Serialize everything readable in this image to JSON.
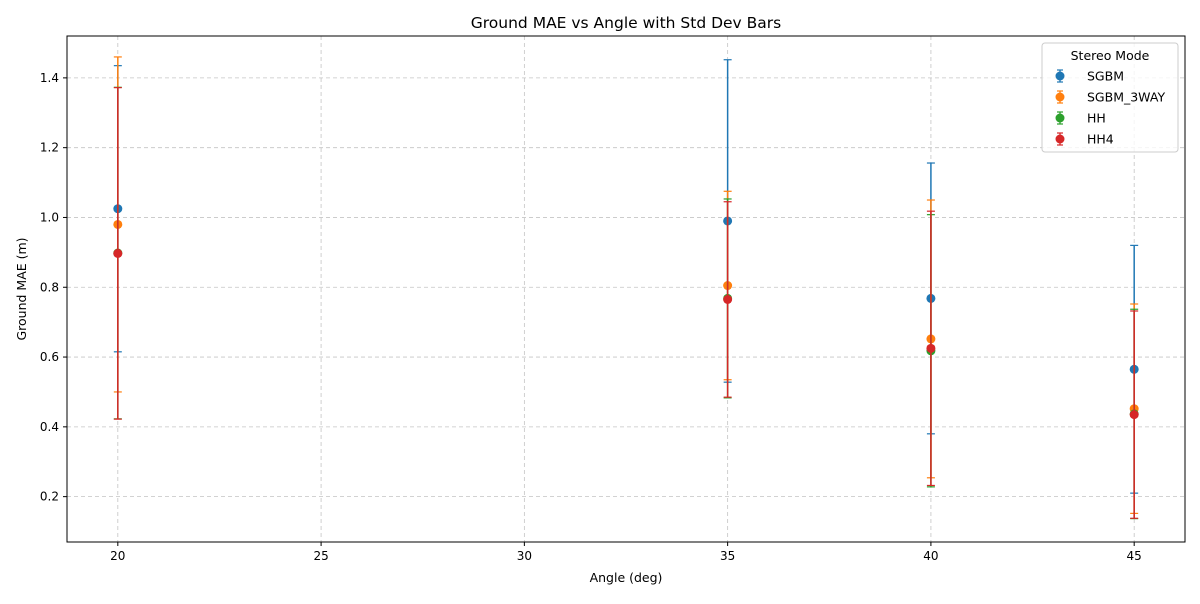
{
  "chart_data": {
    "type": "scatter",
    "title": "Ground MAE vs Angle with Std Dev Bars",
    "xlabel": "Angle (deg)",
    "ylabel": "Ground MAE (m)",
    "xlim": [
      18.75,
      46.25
    ],
    "ylim": [
      0.07,
      1.52
    ],
    "xticks": [
      20,
      25,
      30,
      35,
      40,
      45
    ],
    "yticks": [
      0.2,
      0.4,
      0.6,
      0.8,
      1.0,
      1.2,
      1.4
    ],
    "xtick_labels": [
      "20",
      "25",
      "30",
      "35",
      "40",
      "45"
    ],
    "ytick_labels": [
      "0.2",
      "0.4",
      "0.6",
      "0.8",
      "1.0",
      "1.2",
      "1.4"
    ],
    "grid": true,
    "legend": {
      "title": "Stereo Mode",
      "placement": "top-right"
    },
    "x": [
      20,
      35,
      40,
      45
    ],
    "series": [
      {
        "name": "SGBM",
        "color": "#1f77b4",
        "values": [
          1.025,
          0.99,
          0.768,
          0.565
        ],
        "std": [
          0.41,
          0.462,
          0.388,
          0.355
        ]
      },
      {
        "name": "SGBM_3WAY",
        "color": "#ff7f0e",
        "values": [
          0.98,
          0.805,
          0.652,
          0.452
        ],
        "std": [
          0.48,
          0.27,
          0.398,
          0.3
        ]
      },
      {
        "name": "HH",
        "color": "#2ca02c",
        "values": [
          0.898,
          0.768,
          0.618,
          0.437
        ],
        "std": [
          0.475,
          0.285,
          0.39,
          0.3
        ]
      },
      {
        "name": "HH4",
        "color": "#d62728",
        "values": [
          0.897,
          0.765,
          0.625,
          0.435
        ],
        "std": [
          0.475,
          0.28,
          0.393,
          0.297
        ]
      }
    ]
  }
}
